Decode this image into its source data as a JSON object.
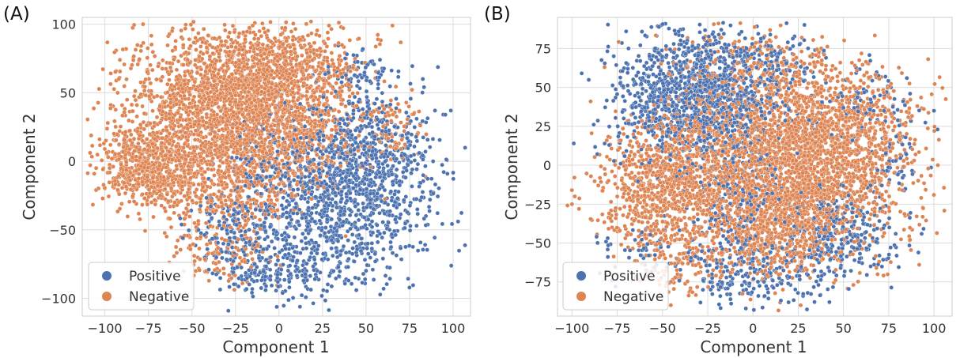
{
  "chart_data": [
    {
      "type": "scatter",
      "panel_label": "(A)",
      "title": "",
      "xlabel": "Component 1",
      "ylabel": "Component 2",
      "xlim": [
        -113,
        110
      ],
      "ylim": [
        -113,
        105
      ],
      "xticks": [
        -100,
        -75,
        -50,
        -25,
        0,
        25,
        50,
        75,
        100
      ],
      "yticks": [
        -100,
        -50,
        0,
        50,
        100
      ],
      "grid": true,
      "legend_position": "lower-left",
      "series": [
        {
          "name": "Positive",
          "color": "#4c72b0",
          "clusters": [
            {
              "cx": 30,
              "cy": -25,
              "sx": 30,
              "sy": 33,
              "n": 1250
            },
            {
              "cx": 55,
              "cy": 5,
              "sx": 16,
              "sy": 22,
              "n": 280
            },
            {
              "cx": 45,
              "cy": 65,
              "sx": 12,
              "sy": 10,
              "n": 70
            },
            {
              "cx": 10,
              "cy": -78,
              "sx": 22,
              "sy": 10,
              "n": 150
            },
            {
              "cx": -25,
              "cy": -55,
              "sx": 14,
              "sy": 14,
              "n": 110
            },
            {
              "cx": -12,
              "cy": -85,
              "sx": 10,
              "sy": 6,
              "n": 45
            }
          ]
        },
        {
          "name": "Negative",
          "color": "#dd8452",
          "clusters": [
            {
              "cx": -25,
              "cy": 40,
              "sx": 32,
              "sy": 30,
              "n": 2200
            },
            {
              "cx": -75,
              "cy": -5,
              "sx": 14,
              "sy": 15,
              "n": 600
            },
            {
              "cx": 0,
              "cy": 70,
              "sx": 22,
              "sy": 15,
              "n": 450
            },
            {
              "cx": -30,
              "cy": -15,
              "sx": 20,
              "sy": 20,
              "n": 400
            },
            {
              "cx": 10,
              "cy": 20,
              "sx": 20,
              "sy": 22,
              "n": 250
            },
            {
              "cx": 65,
              "cy": 20,
              "sx": 10,
              "sy": 12,
              "n": 70
            },
            {
              "cx": -35,
              "cy": -70,
              "sx": 14,
              "sy": 10,
              "n": 100
            }
          ]
        }
      ]
    },
    {
      "type": "scatter",
      "panel_label": "(B)",
      "title": "",
      "xlabel": "Component 1",
      "ylabel": "Component 2",
      "xlim": [
        -108,
        110
      ],
      "ylim": [
        -97,
        95
      ],
      "xticks": [
        -100,
        -75,
        -50,
        -25,
        0,
        25,
        50,
        75,
        100
      ],
      "yticks": [
        -75,
        -50,
        -25,
        0,
        25,
        50,
        75
      ],
      "grid": true,
      "legend_position": "lower-left",
      "series": [
        {
          "name": "Positive",
          "color": "#4c72b0",
          "clusters": [
            {
              "cx": -30,
              "cy": 45,
              "sx": 22,
              "sy": 22,
              "n": 1300
            },
            {
              "cx": 45,
              "cy": -45,
              "sx": 18,
              "sy": 14,
              "n": 280
            },
            {
              "cx": 0,
              "cy": -70,
              "sx": 20,
              "sy": 10,
              "n": 220
            },
            {
              "cx": -10,
              "cy": -25,
              "sx": 12,
              "sy": 20,
              "n": 220
            },
            {
              "cx": 10,
              "cy": 65,
              "sx": 15,
              "sy": 10,
              "n": 100
            },
            {
              "cx": 60,
              "cy": 35,
              "sx": 14,
              "sy": 15,
              "n": 90
            },
            {
              "cx": -60,
              "cy": -55,
              "sx": 12,
              "sy": 10,
              "n": 60
            },
            {
              "cx": 80,
              "cy": 0,
              "sx": 6,
              "sy": 10,
              "n": 40
            }
          ],
          "extra_points": [
            {
              "x": -99,
              "y": 14
            },
            {
              "x": 100,
              "y": 35
            },
            {
              "x": 102,
              "y": 23
            },
            {
              "x": 85,
              "y": 56
            }
          ]
        },
        {
          "name": "Negative",
          "color": "#dd8452",
          "clusters": [
            {
              "cx": 25,
              "cy": 0,
              "sx": 30,
              "sy": 28,
              "n": 2200
            },
            {
              "cx": -50,
              "cy": -15,
              "sx": 18,
              "sy": 20,
              "n": 700
            },
            {
              "cx": 15,
              "cy": -40,
              "sx": 18,
              "sy": 16,
              "n": 500
            },
            {
              "cx": -20,
              "cy": 10,
              "sx": 25,
              "sy": 25,
              "n": 500
            },
            {
              "cx": 50,
              "cy": 30,
              "sx": 22,
              "sy": 18,
              "n": 400
            },
            {
              "cx": 0,
              "cy": 65,
              "sx": 22,
              "sy": 12,
              "n": 200
            },
            {
              "cx": -35,
              "cy": -60,
              "sx": 16,
              "sy": 12,
              "n": 150
            }
          ],
          "extra_points": [
            {
              "x": -100,
              "y": -25
            },
            {
              "x": -82,
              "y": 63
            }
          ]
        }
      ]
    }
  ]
}
